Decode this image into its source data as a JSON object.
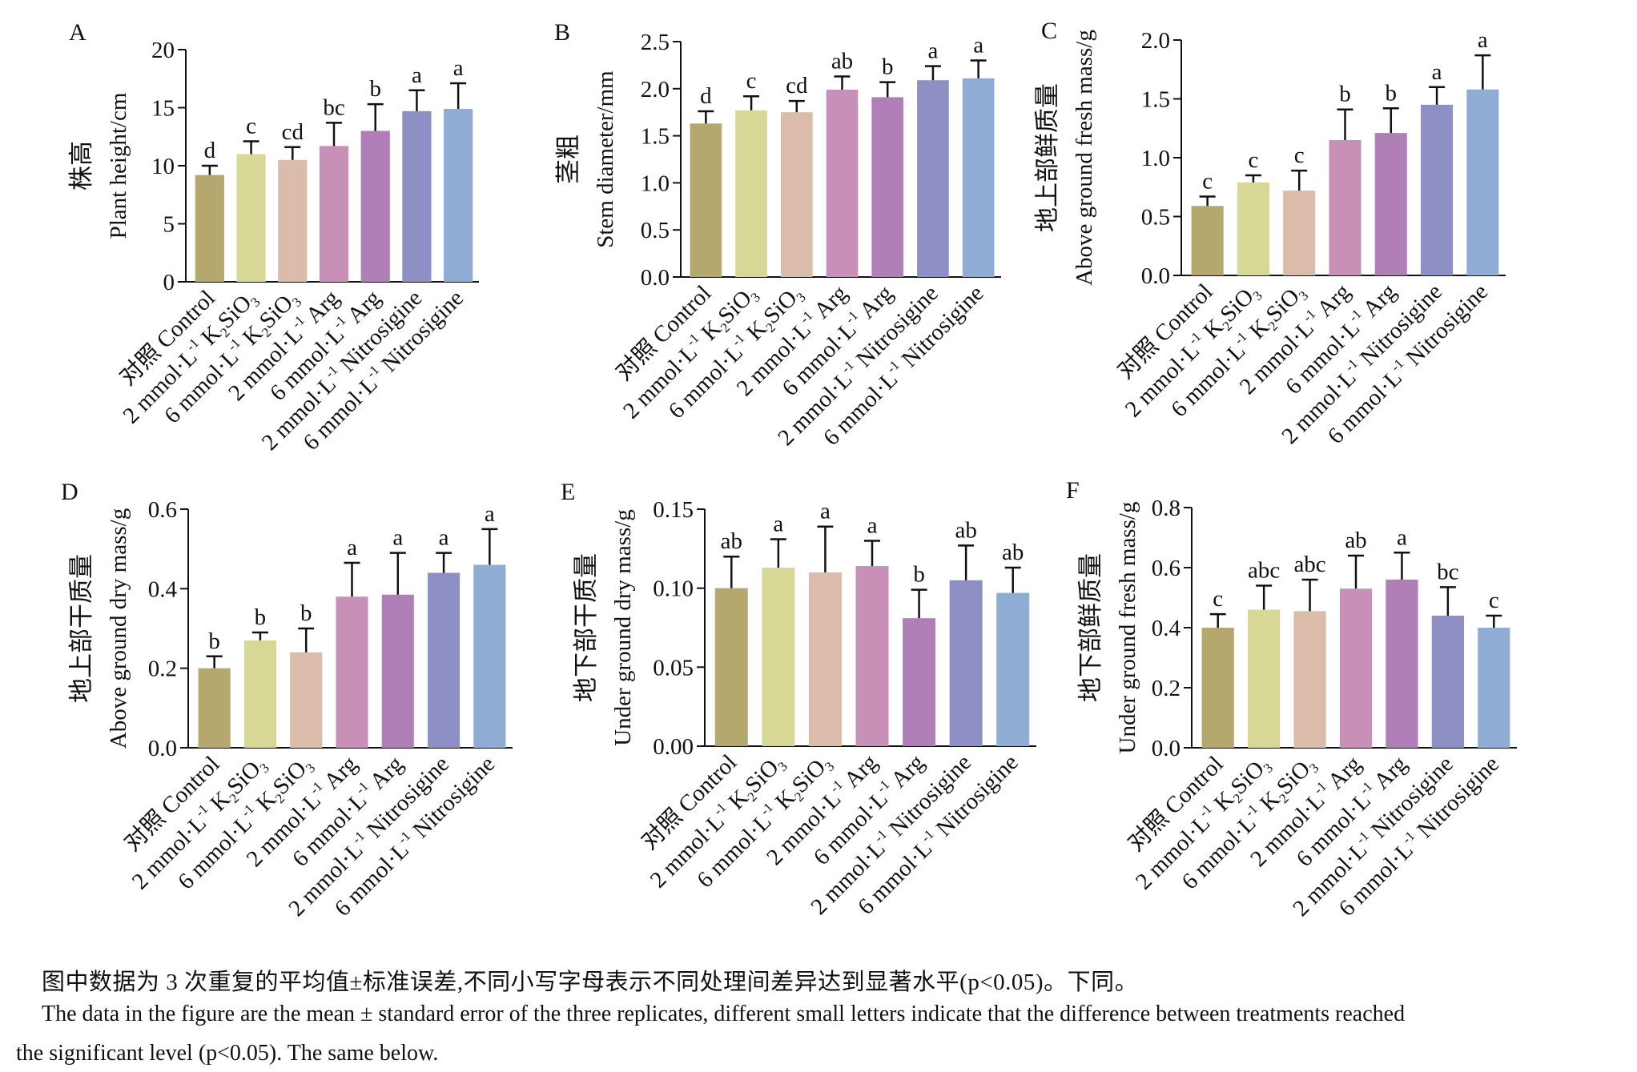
{
  "categories_raw": [
    "对照 Control",
    "2 mmol·L⁻¹ K₂SiO₃",
    "6 mmol·L⁻¹ K₂SiO₃",
    "2 mmol·L⁻¹ Arg",
    "6 mmol·L⁻¹ Arg",
    "2 mmol·L⁻¹ Nitrosigine",
    "6 mmol·L⁻¹ Nitrosigine"
  ],
  "colors": [
    "#b4a86e",
    "#d8d896",
    "#dbbcaa",
    "#c890b7",
    "#b07fb8",
    "#8e8fc4",
    "#8eacd4"
  ],
  "chart_data": [
    {
      "type": "bar",
      "panel_letter": "A",
      "ylabel_cn": "株高",
      "ylabel_en": "Plant height/cm",
      "ylim": [
        0,
        20
      ],
      "yticks": [
        "0",
        "5",
        "10",
        "15",
        "20"
      ],
      "ytick_values": [
        0,
        5,
        10,
        15,
        20
      ],
      "categories": [
        "对照 Control",
        "2 mmol·L⁻¹ K₂SiO₃",
        "6 mmol·L⁻¹ K₂SiO₃",
        "2 mmol·L⁻¹ Arg",
        "6 mmol·L⁻¹ Arg",
        "2 mmol·L⁻¹ Nitrosigine",
        "6 mmol·L⁻¹ Nitrosigine"
      ],
      "values": [
        9.2,
        11.0,
        10.5,
        11.7,
        13.0,
        14.7,
        14.9
      ],
      "errors": [
        0.8,
        1.1,
        1.1,
        2.0,
        2.3,
        1.8,
        2.2
      ],
      "letters": [
        "d",
        "c",
        "cd",
        "bc",
        "b",
        "a",
        "a"
      ]
    },
    {
      "type": "bar",
      "panel_letter": "B",
      "ylabel_cn": "茎粗",
      "ylabel_en": "Stem diameter/mm",
      "ylim": [
        0,
        2.5
      ],
      "yticks": [
        "0.0",
        "0.5",
        "1.0",
        "1.5",
        "2.0",
        "2.5"
      ],
      "ytick_values": [
        0,
        0.5,
        1.0,
        1.5,
        2.0,
        2.5
      ],
      "categories": [
        "对照 Control",
        "2 mmol·L⁻¹ K₂SiO₃",
        "6 mmol·L⁻¹ K₂SiO₃",
        "2 mmol·L⁻¹ Arg",
        "6 mmol·L⁻¹ Arg",
        "2 mmol·L⁻¹ Nitrosigine",
        "6 mmol·L⁻¹ Nitrosigine"
      ],
      "values": [
        1.63,
        1.77,
        1.75,
        1.99,
        1.91,
        2.09,
        2.11
      ],
      "errors": [
        0.13,
        0.15,
        0.12,
        0.14,
        0.16,
        0.15,
        0.19
      ],
      "letters": [
        "d",
        "c",
        "cd",
        "ab",
        "b",
        "a",
        "a"
      ]
    },
    {
      "type": "bar",
      "panel_letter": "C",
      "ylabel_cn": "地上部鲜质量",
      "ylabel_en": "Above ground fresh mass/g",
      "ylim": [
        0,
        2.0
      ],
      "yticks": [
        "0.0",
        "0.5",
        "1.0",
        "1.5",
        "2.0"
      ],
      "ytick_values": [
        0,
        0.5,
        1.0,
        1.5,
        2.0
      ],
      "categories": [
        "对照 Control",
        "2 mmol·L⁻¹ K₂SiO₃",
        "6 mmol·L⁻¹ K₂SiO₃",
        "2 mmol·L⁻¹ Arg",
        "6 mmol·L⁻¹ Arg",
        "2 mmol·L⁻¹ Nitrosigine",
        "6 mmol·L⁻¹ Nitrosigine"
      ],
      "values": [
        0.59,
        0.79,
        0.72,
        1.15,
        1.21,
        1.45,
        1.58
      ],
      "errors": [
        0.08,
        0.06,
        0.17,
        0.26,
        0.21,
        0.15,
        0.29
      ],
      "letters": [
        "c",
        "c",
        "c",
        "b",
        "b",
        "a",
        "a"
      ]
    },
    {
      "type": "bar",
      "panel_letter": "D",
      "ylabel_cn": "地上部干质量",
      "ylabel_en": "Above ground dry mass/g",
      "ylim": [
        0,
        0.6
      ],
      "yticks": [
        "0.0",
        "0.2",
        "0.4",
        "0.6"
      ],
      "ytick_values": [
        0,
        0.2,
        0.4,
        0.6
      ],
      "categories": [
        "对照 Control",
        "2 mmol·L⁻¹ K₂SiO₃",
        "6 mmol·L⁻¹ K₂SiO₃",
        "2 mmol·L⁻¹ Arg",
        "6 mmol·L⁻¹ Arg",
        "2 mmol·L⁻¹ Nitrosigine",
        "6 mmol·L⁻¹ Nitrosigine"
      ],
      "values": [
        0.2,
        0.27,
        0.24,
        0.38,
        0.385,
        0.44,
        0.46
      ],
      "errors": [
        0.03,
        0.02,
        0.06,
        0.085,
        0.105,
        0.05,
        0.09
      ],
      "letters": [
        "b",
        "b",
        "b",
        "a",
        "a",
        "a",
        "a"
      ]
    },
    {
      "type": "bar",
      "panel_letter": "E",
      "ylabel_cn": "地下部干质量",
      "ylabel_en": "Under ground dry mass/g",
      "ylim": [
        0,
        0.15
      ],
      "yticks": [
        "0.00",
        "0.05",
        "0.10",
        "0.15"
      ],
      "ytick_values": [
        0,
        0.05,
        0.1,
        0.15
      ],
      "categories": [
        "对照 Control",
        "2 mmol·L⁻¹ K₂SiO₃",
        "6 mmol·L⁻¹ K₂SiO₃",
        "2 mmol·L⁻¹ Arg",
        "6 mmol·L⁻¹ Arg",
        "2 mmol·L⁻¹ Nitrosigine",
        "6 mmol·L⁻¹ Nitrosigine"
      ],
      "values": [
        0.1,
        0.113,
        0.11,
        0.114,
        0.081,
        0.105,
        0.097
      ],
      "errors": [
        0.02,
        0.018,
        0.029,
        0.016,
        0.018,
        0.022,
        0.016
      ],
      "letters": [
        "ab",
        "a",
        "a",
        "a",
        "b",
        "ab",
        "ab"
      ]
    },
    {
      "type": "bar",
      "panel_letter": "F",
      "ylabel_cn": "地下部鲜质量",
      "ylabel_en": "Under ground fresh mass/g",
      "ylim": [
        0,
        0.8
      ],
      "yticks": [
        "0.0",
        "0.2",
        "0.4",
        "0.6",
        "0.8"
      ],
      "ytick_values": [
        0,
        0.2,
        0.4,
        0.6,
        0.8
      ],
      "categories": [
        "对照 Control",
        "2 mmol·L⁻¹ K₂SiO₃",
        "6 mmol·L⁻¹ K₂SiO₃",
        "2 mmol·L⁻¹ Arg",
        "6 mmol·L⁻¹ Arg",
        "2 mmol·L⁻¹ Nitrosigine",
        "6 mmol·L⁻¹ Nitrosigine"
      ],
      "values": [
        0.4,
        0.46,
        0.455,
        0.53,
        0.56,
        0.44,
        0.4
      ],
      "errors": [
        0.045,
        0.08,
        0.105,
        0.11,
        0.09,
        0.095,
        0.04
      ],
      "letters": [
        "c",
        "abc",
        "abc",
        "ab",
        "a",
        "bc",
        "c"
      ]
    }
  ],
  "caption": {
    "cn": "图中数据为 3 次重复的平均值±标准误差,不同小写字母表示不同处理间差异达到显著水平(p<0.05)。下同。",
    "en_line1": "The data in the figure are the mean ± standard error of the three replicates, different small letters indicate that the difference between treatments reached",
    "en_line2": "the significant level (p<0.05). The same below."
  }
}
